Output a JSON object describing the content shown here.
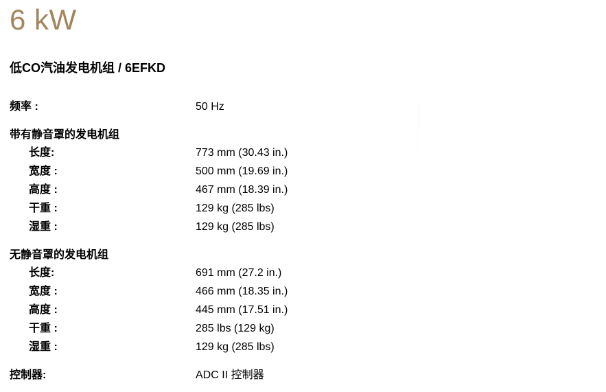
{
  "page": {
    "title": "6 kW",
    "subtitle": "低CO汽油发电机组 / 6EFKD",
    "title_color": "#A5845C"
  },
  "frequency": {
    "label": "频率 :",
    "value": "50 Hz"
  },
  "sections": [
    {
      "heading": "带有静音罩的发电机组",
      "rows": [
        {
          "label": "长度:",
          "value": "773 mm (30.43 in.)"
        },
        {
          "label": "宽度 :",
          "value": "500 mm (19.69 in.)"
        },
        {
          "label": "高度 :",
          "value": "467 mm (18.39 in.)"
        },
        {
          "label": "干重 :",
          "value": "129 kg (285 lbs)"
        },
        {
          "label": "湿重 :",
          "value": "129 kg (285 lbs)"
        }
      ]
    },
    {
      "heading": "无静音罩的发电机组",
      "rows": [
        {
          "label": "长度:",
          "value": "691 mm (27.2 in.)"
        },
        {
          "label": "宽度 :",
          "value": "466 mm (18.35 in.)"
        },
        {
          "label": "高度 :",
          "value": "445 mm (17.51 in.)"
        },
        {
          "label": "干重 :",
          "value": "285 lbs (129 kg)"
        },
        {
          "label": "湿重 :",
          "value": "129 kg (285 lbs)"
        }
      ]
    }
  ],
  "controller": {
    "label": "控制器:",
    "value": "ADC II 控制器"
  }
}
